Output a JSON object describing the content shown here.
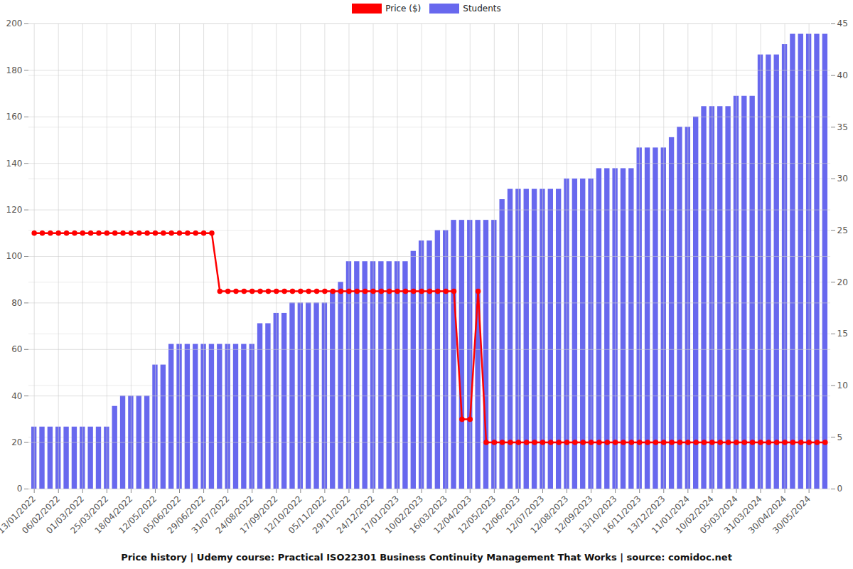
{
  "chart_data": {
    "type": "bar",
    "title": "Price history | Udemy course: Practical ISO22301 Business Continuity Management That Works | source: comidoc.net",
    "categories": [
      "13/01/2022",
      null,
      null,
      "06/02/2022",
      null,
      null,
      "01/03/2022",
      null,
      null,
      "25/03/2022",
      null,
      null,
      "18/04/2022",
      null,
      null,
      "12/05/2022",
      null,
      null,
      "05/06/2022",
      null,
      null,
      "29/06/2022",
      null,
      null,
      "31/07/2022",
      null,
      null,
      "24/08/2022",
      null,
      null,
      "17/09/2022",
      null,
      null,
      "12/10/2022",
      null,
      null,
      "05/11/2022",
      null,
      null,
      "29/11/2022",
      null,
      null,
      "24/12/2022",
      null,
      null,
      "17/01/2023",
      null,
      null,
      "10/02/2023",
      null,
      null,
      "16/03/2023",
      null,
      null,
      "12/04/2023",
      null,
      null,
      "12/05/2023",
      null,
      null,
      "12/06/2023",
      null,
      null,
      "12/07/2023",
      null,
      null,
      "12/08/2023",
      null,
      null,
      "12/09/2023",
      null,
      null,
      "13/10/2023",
      null,
      null,
      "16/11/2023",
      null,
      null,
      "13/12/2023",
      null,
      null,
      "11/01/2024",
      null,
      null,
      "10/02/2024",
      null,
      null,
      "05/03/2024",
      null,
      null,
      "31/03/2024",
      null,
      null,
      "30/04/2024",
      null,
      null,
      "30/05/2024",
      null,
      null
    ],
    "series": [
      {
        "name": "Students",
        "type": "bar",
        "axis": "y2",
        "color": "#6868ee",
        "values": [
          6,
          6,
          6,
          6,
          6,
          6,
          6,
          6,
          6,
          6,
          8,
          9,
          9,
          9,
          9,
          12,
          12,
          14,
          14,
          14,
          14,
          14,
          14,
          14,
          14,
          14,
          14,
          14,
          16,
          16,
          17,
          17,
          18,
          18,
          18,
          18,
          18,
          19,
          20,
          22,
          22,
          22,
          22,
          22,
          22,
          22,
          22,
          23,
          24,
          24,
          25,
          25,
          26,
          26,
          26,
          26,
          26,
          26,
          28,
          29,
          29,
          29,
          29,
          29,
          29,
          29,
          30,
          30,
          30,
          30,
          31,
          31,
          31,
          31,
          31,
          33,
          33,
          33,
          33,
          34,
          35,
          35,
          36,
          37,
          37,
          37,
          37,
          38,
          38,
          38,
          42,
          42,
          42,
          43,
          44,
          44,
          44,
          44,
          44
        ]
      },
      {
        "name": "Price ($)",
        "type": "line",
        "color": "#ff0000",
        "marker": "circle",
        "values": [
          110,
          110,
          110,
          110,
          110,
          110,
          110,
          110,
          110,
          110,
          110,
          110,
          110,
          110,
          110,
          110,
          110,
          110,
          110,
          110,
          110,
          110,
          110,
          85,
          85,
          85,
          85,
          85,
          85,
          85,
          85,
          85,
          85,
          85,
          85,
          85,
          85,
          85,
          85,
          85,
          85,
          85,
          85,
          85,
          85,
          85,
          85,
          85,
          85,
          85,
          85,
          85,
          85,
          30,
          30,
          85,
          20,
          20,
          20,
          20,
          20,
          20,
          20,
          20,
          20,
          20,
          20,
          20,
          20,
          20,
          20,
          20,
          20,
          20,
          20,
          20,
          20,
          20,
          20,
          20,
          20,
          20,
          20,
          20,
          20,
          20,
          20,
          20,
          20,
          20,
          20,
          20,
          20,
          20,
          20,
          20,
          20,
          20,
          20
        ]
      }
    ],
    "ylim": [
      0,
      200
    ],
    "yticks": [
      0,
      20,
      40,
      60,
      80,
      100,
      120,
      140,
      160,
      180,
      200
    ],
    "y2lim": [
      0,
      45
    ],
    "y2ticks": [
      0,
      5,
      10,
      15,
      20,
      25,
      30,
      35,
      40,
      45
    ],
    "grid": true,
    "legend": "top"
  }
}
